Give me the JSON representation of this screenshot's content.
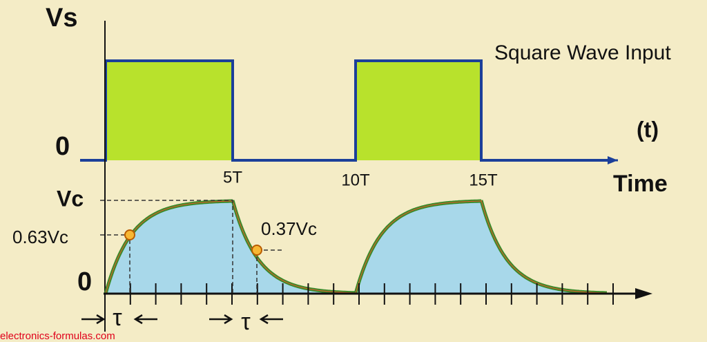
{
  "top_panel": {
    "y_label": "Vs",
    "title": "Square Wave Input",
    "zero_label": "0",
    "axis_label": "(t)",
    "time_ticks": [
      "5T",
      "10T",
      "15T"
    ],
    "time_label": "Time"
  },
  "bottom_panel": {
    "peak_label": "Vc",
    "charge_label": "0.63Vc",
    "discharge_label": "0.37Vc",
    "zero_label": "0",
    "tau_labels": [
      "τ",
      "τ"
    ]
  },
  "footer": "electronics-formulas.com"
}
